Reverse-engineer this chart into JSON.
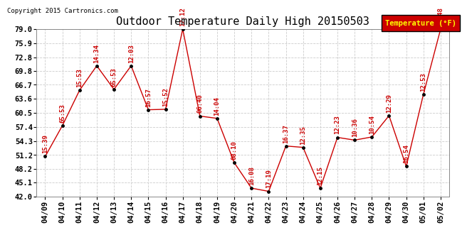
{
  "title": "Outdoor Temperature Daily High 20150503",
  "copyright": "Copyright 2015 Cartronics.com",
  "legend_label": "Temperature (°F)",
  "dates": [
    "04/09",
    "04/10",
    "04/11",
    "04/12",
    "04/13",
    "04/14",
    "04/15",
    "04/16",
    "04/17",
    "04/18",
    "04/19",
    "04/20",
    "04/21",
    "04/22",
    "04/23",
    "04/24",
    "04/25",
    "04/26",
    "04/27",
    "04/28",
    "04/29",
    "04/30",
    "05/01",
    "05/02"
  ],
  "temps": [
    50.9,
    57.7,
    65.5,
    70.9,
    65.7,
    70.9,
    61.2,
    61.3,
    79.0,
    59.8,
    59.3,
    49.5,
    43.9,
    43.2,
    53.2,
    52.9,
    43.9,
    55.1,
    54.5,
    55.2,
    59.9,
    48.7,
    64.6,
    79.0
  ],
  "time_labels": [
    "15:39",
    "65:53",
    "15:53",
    "14:34",
    "65:53",
    "12:03",
    "16:57",
    "15:52",
    "12:12",
    "06:40",
    "14:04",
    "08:10",
    "16:08",
    "17:19",
    "16:37",
    "12:35",
    "12:15",
    "12:23",
    "10:36",
    "10:54",
    "12:29",
    "16:54",
    "12:53",
    "14:48"
  ],
  "line_color": "#CC0000",
  "marker_color": "#000000",
  "label_color": "#CC0000",
  "bg_color": "#FFFFFF",
  "grid_color": "#CCCCCC",
  "legend_bg": "#CC0000",
  "legend_text": "#FFFF00",
  "ylim": [
    42.0,
    79.0
  ],
  "yticks": [
    42.0,
    45.1,
    48.2,
    51.2,
    54.3,
    57.4,
    60.5,
    63.6,
    66.7,
    69.8,
    72.8,
    75.9,
    79.0
  ],
  "title_fontsize": 11,
  "label_fontsize": 6.5,
  "tick_fontsize": 7.5,
  "copyright_fontsize": 6.5
}
